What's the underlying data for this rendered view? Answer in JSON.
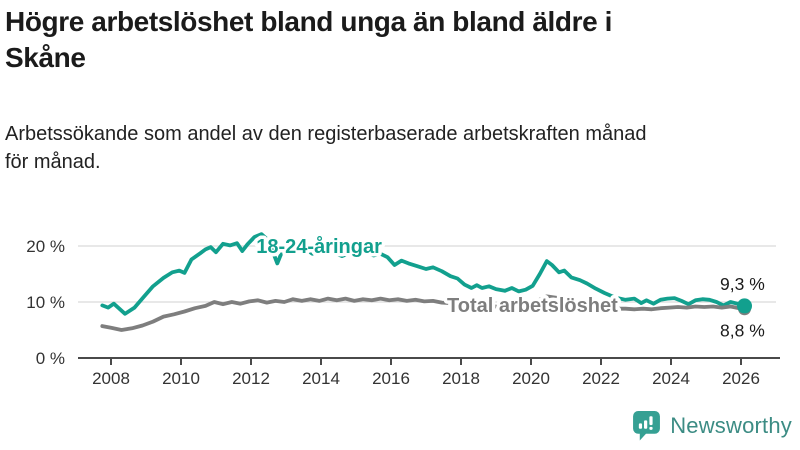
{
  "header": {
    "title_lines": [
      "Högre arbetslöshet bland unga än bland äldre i",
      "Skåne"
    ],
    "subtitle_lines": [
      "Arbetssökande som andel av den registerbaserade arbetskraften månad",
      "för månad."
    ]
  },
  "footer": {
    "brand": "Newsworthy"
  },
  "colors": {
    "youth": "#12a08e",
    "total": "#7e7e7e",
    "grid": "#d9d9d9",
    "axis": "#4a4a4a",
    "tick_text": "#333333",
    "end_label_text": "#1a1a1a",
    "logo_icon": "#35a093",
    "logo_text": "#3c8c84",
    "title_text": "#1b1b1b"
  },
  "chart_data": {
    "type": "line",
    "title": "Högre arbetslöshet bland unga än bland äldre i Skåne",
    "subtitle": "Arbetssökande som andel av den registerbaserade arbetskraften månad för månad.",
    "x_axis": {
      "ticks": [
        2008,
        2010,
        2012,
        2014,
        2016,
        2018,
        2020,
        2022,
        2024,
        2026
      ],
      "range": [
        2007.7,
        2026.6
      ]
    },
    "y_axis": {
      "ticks": [
        {
          "value": 0,
          "label": "0 %"
        },
        {
          "value": 10,
          "label": "10 %"
        },
        {
          "value": 20,
          "label": "20 %"
        }
      ],
      "range": [
        0,
        24
      ],
      "unit": "%"
    },
    "grid": true,
    "legend_position": "inline-labels",
    "series": [
      {
        "name": "18-24-åringar",
        "color_key": "youth",
        "end_label": "9,3 %",
        "end_value": 9.3,
        "label_at": [
          2012.15,
          18.75
        ],
        "points": [
          [
            2007.75,
            9.4
          ],
          [
            2007.92,
            9.0
          ],
          [
            2008.08,
            9.7
          ],
          [
            2008.4,
            7.9
          ],
          [
            2008.67,
            9.0
          ],
          [
            2008.92,
            10.8
          ],
          [
            2009.2,
            12.8
          ],
          [
            2009.5,
            14.3
          ],
          [
            2009.75,
            15.3
          ],
          [
            2009.95,
            15.6
          ],
          [
            2010.1,
            15.2
          ],
          [
            2010.3,
            17.6
          ],
          [
            2010.55,
            18.7
          ],
          [
            2010.7,
            19.4
          ],
          [
            2010.85,
            19.8
          ],
          [
            2011.0,
            18.9
          ],
          [
            2011.2,
            20.4
          ],
          [
            2011.4,
            20.1
          ],
          [
            2011.6,
            20.5
          ],
          [
            2011.75,
            19.1
          ],
          [
            2011.9,
            20.3
          ],
          [
            2012.1,
            21.6
          ],
          [
            2012.3,
            22.1
          ],
          [
            2012.5,
            21.0
          ],
          [
            2012.75,
            16.9
          ],
          [
            2012.95,
            20.0
          ],
          [
            2013.2,
            20.5
          ],
          [
            2013.5,
            19.8
          ],
          [
            2013.75,
            18.6
          ],
          [
            2014.0,
            19.3
          ],
          [
            2014.3,
            19.0
          ],
          [
            2014.6,
            18.2
          ],
          [
            2014.85,
            18.8
          ],
          [
            2015.05,
            18.1
          ],
          [
            2015.3,
            19.0
          ],
          [
            2015.5,
            18.3
          ],
          [
            2015.7,
            18.6
          ],
          [
            2015.9,
            18.0
          ],
          [
            2016.1,
            16.6
          ],
          [
            2016.3,
            17.4
          ],
          [
            2016.5,
            16.9
          ],
          [
            2016.75,
            16.4
          ],
          [
            2017.0,
            15.9
          ],
          [
            2017.2,
            16.2
          ],
          [
            2017.45,
            15.5
          ],
          [
            2017.7,
            14.6
          ],
          [
            2017.9,
            14.2
          ],
          [
            2018.1,
            13.1
          ],
          [
            2018.3,
            12.5
          ],
          [
            2018.45,
            13.0
          ],
          [
            2018.6,
            12.5
          ],
          [
            2018.8,
            12.8
          ],
          [
            2019.0,
            12.3
          ],
          [
            2019.25,
            12.0
          ],
          [
            2019.45,
            12.5
          ],
          [
            2019.65,
            11.9
          ],
          [
            2019.85,
            12.2
          ],
          [
            2020.05,
            12.9
          ],
          [
            2020.25,
            15.0
          ],
          [
            2020.45,
            17.3
          ],
          [
            2020.6,
            16.6
          ],
          [
            2020.8,
            15.3
          ],
          [
            2020.95,
            15.6
          ],
          [
            2021.15,
            14.4
          ],
          [
            2021.4,
            13.9
          ],
          [
            2021.6,
            13.3
          ],
          [
            2021.85,
            12.4
          ],
          [
            2022.1,
            11.6
          ],
          [
            2022.4,
            10.8
          ],
          [
            2022.7,
            10.4
          ],
          [
            2022.95,
            10.6
          ],
          [
            2023.15,
            9.8
          ],
          [
            2023.3,
            10.3
          ],
          [
            2023.5,
            9.7
          ],
          [
            2023.7,
            10.4
          ],
          [
            2023.9,
            10.6
          ],
          [
            2024.1,
            10.7
          ],
          [
            2024.3,
            10.2
          ],
          [
            2024.5,
            9.6
          ],
          [
            2024.7,
            10.3
          ],
          [
            2024.9,
            10.5
          ],
          [
            2025.1,
            10.4
          ],
          [
            2025.3,
            10.0
          ],
          [
            2025.5,
            9.4
          ],
          [
            2025.7,
            10.0
          ],
          [
            2025.9,
            9.7
          ],
          [
            2026.1,
            9.3
          ]
        ]
      },
      {
        "name": "Total arbetslöshet",
        "color_key": "total",
        "end_label": "8,8 %",
        "end_value": 8.8,
        "label_at": [
          2017.6,
          8.2
        ],
        "points": [
          [
            2007.75,
            5.7
          ],
          [
            2008.0,
            5.4
          ],
          [
            2008.3,
            5.0
          ],
          [
            2008.6,
            5.3
          ],
          [
            2008.9,
            5.8
          ],
          [
            2009.2,
            6.5
          ],
          [
            2009.5,
            7.4
          ],
          [
            2009.8,
            7.8
          ],
          [
            2010.1,
            8.3
          ],
          [
            2010.4,
            8.9
          ],
          [
            2010.7,
            9.3
          ],
          [
            2010.95,
            10.0
          ],
          [
            2011.2,
            9.6
          ],
          [
            2011.45,
            10.0
          ],
          [
            2011.7,
            9.7
          ],
          [
            2011.95,
            10.1
          ],
          [
            2012.2,
            10.3
          ],
          [
            2012.45,
            9.9
          ],
          [
            2012.7,
            10.2
          ],
          [
            2012.95,
            10.0
          ],
          [
            2013.2,
            10.5
          ],
          [
            2013.45,
            10.2
          ],
          [
            2013.7,
            10.5
          ],
          [
            2013.95,
            10.2
          ],
          [
            2014.2,
            10.6
          ],
          [
            2014.45,
            10.3
          ],
          [
            2014.7,
            10.6
          ],
          [
            2014.95,
            10.2
          ],
          [
            2015.2,
            10.5
          ],
          [
            2015.45,
            10.3
          ],
          [
            2015.7,
            10.6
          ],
          [
            2015.95,
            10.3
          ],
          [
            2016.2,
            10.5
          ],
          [
            2016.45,
            10.2
          ],
          [
            2016.7,
            10.4
          ],
          [
            2016.95,
            10.1
          ],
          [
            2017.2,
            10.2
          ],
          [
            2017.45,
            9.9
          ],
          [
            2017.7,
            9.8
          ],
          [
            2018.0,
            9.6
          ],
          [
            2018.5,
            9.4
          ],
          [
            2019.0,
            9.2
          ],
          [
            2019.5,
            9.3
          ],
          [
            2020.0,
            9.7
          ],
          [
            2020.45,
            11.0
          ],
          [
            2020.8,
            10.7
          ],
          [
            2021.2,
            10.2
          ],
          [
            2021.6,
            9.6
          ],
          [
            2022.0,
            9.1
          ],
          [
            2022.4,
            8.8
          ],
          [
            2022.7,
            8.8
          ],
          [
            2022.95,
            8.7
          ],
          [
            2023.2,
            8.8
          ],
          [
            2023.45,
            8.7
          ],
          [
            2023.7,
            8.9
          ],
          [
            2023.95,
            9.0
          ],
          [
            2024.2,
            9.1
          ],
          [
            2024.45,
            9.0
          ],
          [
            2024.7,
            9.2
          ],
          [
            2024.95,
            9.1
          ],
          [
            2025.2,
            9.2
          ],
          [
            2025.45,
            9.0
          ],
          [
            2025.7,
            9.2
          ],
          [
            2025.95,
            8.9
          ],
          [
            2026.1,
            8.8
          ]
        ]
      }
    ]
  }
}
